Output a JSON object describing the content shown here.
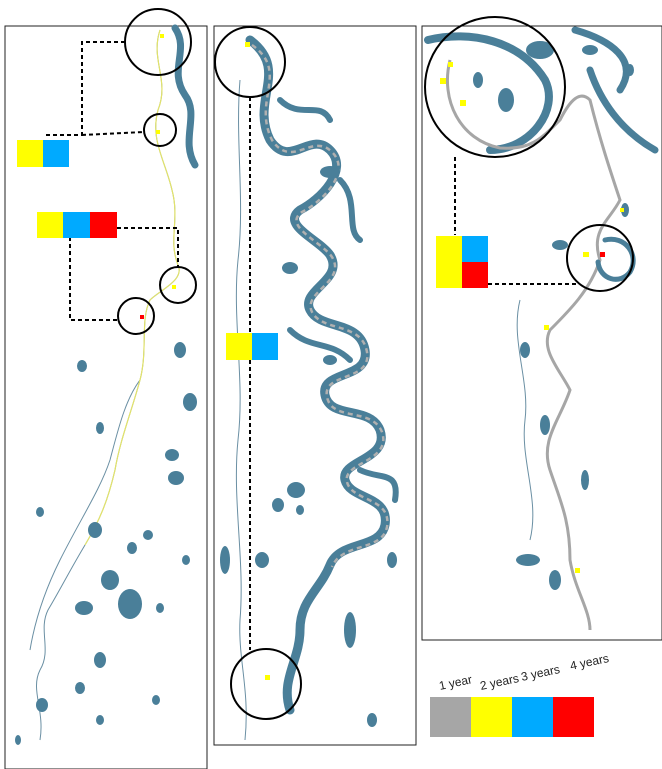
{
  "legend": {
    "items": [
      {
        "label": "1 year",
        "color": "#a6a6a6"
      },
      {
        "label": "2 years",
        "color": "#ffff00"
      },
      {
        "label": "3 years",
        "color": "#00aaff"
      },
      {
        "label": "4 years",
        "color": "#ff0000"
      }
    ]
  },
  "colors": {
    "water": "#4a7f99",
    "one_year": "#a6a6a6",
    "two_years": "#ffff00",
    "three_years": "#00aaff",
    "four_years": "#ff0000"
  },
  "panels": [
    {
      "id": "panel-left",
      "view": "overview"
    },
    {
      "id": "panel-middle",
      "view": "zoom"
    },
    {
      "id": "panel-right",
      "view": "zoom"
    }
  ],
  "callouts": [
    {
      "colors": [
        "two_years",
        "three_years"
      ]
    },
    {
      "colors": [
        "two_years",
        "three_years",
        "four_years"
      ]
    },
    {
      "colors": [
        "two_years",
        "three_years"
      ]
    },
    {
      "colors": [
        "two_years",
        "three_years",
        "four_years"
      ]
    }
  ]
}
